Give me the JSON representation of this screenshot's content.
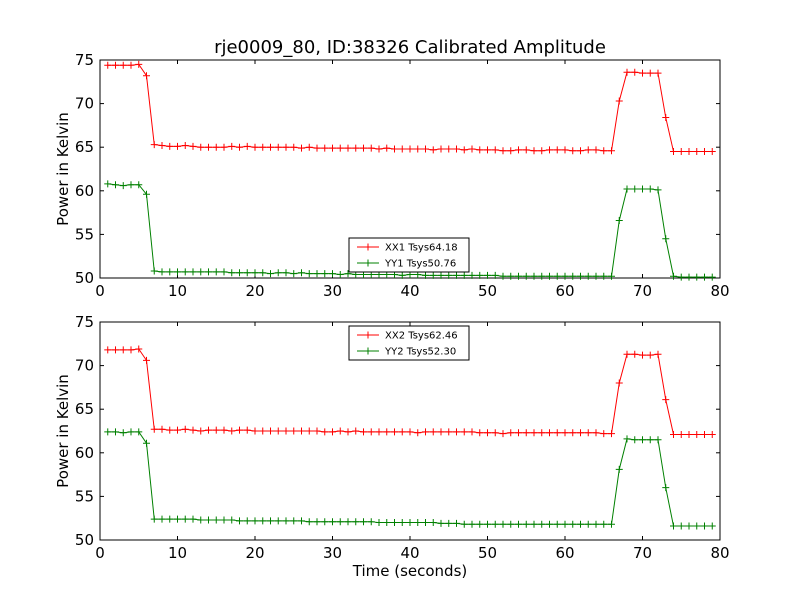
{
  "figure": {
    "title": "rje0009_80, ID:38326 Calibrated Amplitude"
  },
  "colors": {
    "series_red": "#ff0000",
    "series_green": "#008000",
    "axes": "#000000",
    "background": "#ffffff"
  },
  "chart_data": [
    {
      "type": "line",
      "title": "rje0009_80, ID:38326 Calibrated Amplitude",
      "xlabel": "",
      "ylabel": "Power in Kelvin",
      "xlim": [
        0,
        80
      ],
      "ylim": [
        50,
        75
      ],
      "xticks": [
        0,
        10,
        20,
        30,
        40,
        50,
        60,
        70,
        80
      ],
      "yticks": [
        50,
        55,
        60,
        65,
        70,
        75
      ],
      "grid": false,
      "legend_position": "lower-center",
      "marker": "plus",
      "x": [
        1,
        2,
        3,
        4,
        5,
        6,
        7,
        8,
        9,
        10,
        11,
        12,
        13,
        14,
        15,
        16,
        17,
        18,
        19,
        20,
        21,
        22,
        23,
        24,
        25,
        26,
        27,
        28,
        29,
        30,
        31,
        32,
        33,
        34,
        35,
        36,
        37,
        38,
        39,
        40,
        41,
        42,
        43,
        44,
        45,
        46,
        47,
        48,
        49,
        50,
        51,
        52,
        53,
        54,
        55,
        56,
        57,
        58,
        59,
        60,
        61,
        62,
        63,
        64,
        65,
        66,
        67,
        68,
        69,
        70,
        71,
        72,
        73,
        74,
        75,
        76,
        77,
        78,
        79
      ],
      "series": [
        {
          "name": "XX1 Tsys64.18",
          "color": "#ff0000",
          "values": [
            74.4,
            74.4,
            74.4,
            74.4,
            74.5,
            73.2,
            65.3,
            65.2,
            65.1,
            65.1,
            65.2,
            65.1,
            65.0,
            65.0,
            65.0,
            65.0,
            65.1,
            65.0,
            65.1,
            65.0,
            65.0,
            65.0,
            65.0,
            65.0,
            65.0,
            64.9,
            65.0,
            64.9,
            64.9,
            64.9,
            64.9,
            64.9,
            64.9,
            64.9,
            64.9,
            64.8,
            64.9,
            64.8,
            64.8,
            64.8,
            64.8,
            64.8,
            64.7,
            64.8,
            64.8,
            64.8,
            64.7,
            64.8,
            64.7,
            64.7,
            64.7,
            64.6,
            64.6,
            64.7,
            64.7,
            64.6,
            64.6,
            64.7,
            64.7,
            64.7,
            64.6,
            64.6,
            64.7,
            64.7,
            64.6,
            64.6,
            70.3,
            73.6,
            73.6,
            73.5,
            73.5,
            73.5,
            68.4,
            64.5,
            64.5,
            64.5,
            64.5,
            64.5,
            64.5
          ]
        },
        {
          "name": "YY1 Tsys50.76",
          "color": "#008000",
          "values": [
            60.8,
            60.7,
            60.6,
            60.7,
            60.7,
            59.6,
            50.8,
            50.7,
            50.7,
            50.7,
            50.7,
            50.7,
            50.7,
            50.7,
            50.7,
            50.7,
            50.6,
            50.6,
            50.6,
            50.6,
            50.6,
            50.5,
            50.6,
            50.6,
            50.5,
            50.6,
            50.5,
            50.5,
            50.5,
            50.5,
            50.4,
            50.5,
            50.4,
            50.4,
            50.4,
            50.4,
            50.4,
            50.4,
            50.3,
            50.4,
            50.4,
            50.3,
            50.3,
            50.3,
            50.3,
            50.3,
            50.3,
            50.3,
            50.3,
            50.3,
            50.3,
            50.2,
            50.2,
            50.2,
            50.2,
            50.2,
            50.2,
            50.2,
            50.2,
            50.2,
            50.2,
            50.2,
            50.2,
            50.2,
            50.2,
            50.2,
            56.6,
            60.2,
            60.2,
            60.2,
            60.2,
            60.1,
            54.5,
            50.2,
            50.1,
            50.1,
            50.1,
            50.1,
            50.1
          ]
        }
      ]
    },
    {
      "type": "line",
      "title": "",
      "xlabel": "Time (seconds)",
      "ylabel": "Power in Kelvin",
      "xlim": [
        0,
        80
      ],
      "ylim": [
        50,
        75
      ],
      "xticks": [
        0,
        10,
        20,
        30,
        40,
        50,
        60,
        70,
        80
      ],
      "yticks": [
        50,
        55,
        60,
        65,
        70,
        75
      ],
      "grid": false,
      "legend_position": "upper-center",
      "marker": "plus",
      "x": [
        1,
        2,
        3,
        4,
        5,
        6,
        7,
        8,
        9,
        10,
        11,
        12,
        13,
        14,
        15,
        16,
        17,
        18,
        19,
        20,
        21,
        22,
        23,
        24,
        25,
        26,
        27,
        28,
        29,
        30,
        31,
        32,
        33,
        34,
        35,
        36,
        37,
        38,
        39,
        40,
        41,
        42,
        43,
        44,
        45,
        46,
        47,
        48,
        49,
        50,
        51,
        52,
        53,
        54,
        55,
        56,
        57,
        58,
        59,
        60,
        61,
        62,
        63,
        64,
        65,
        66,
        67,
        68,
        69,
        70,
        71,
        72,
        73,
        74,
        75,
        76,
        77,
        78,
        79
      ],
      "series": [
        {
          "name": "XX2 Tsys62.46",
          "color": "#ff0000",
          "values": [
            71.8,
            71.8,
            71.8,
            71.8,
            71.9,
            70.6,
            62.7,
            62.7,
            62.6,
            62.6,
            62.7,
            62.6,
            62.5,
            62.6,
            62.6,
            62.6,
            62.5,
            62.6,
            62.6,
            62.5,
            62.5,
            62.5,
            62.5,
            62.5,
            62.5,
            62.5,
            62.5,
            62.5,
            62.4,
            62.4,
            62.5,
            62.4,
            62.5,
            62.4,
            62.4,
            62.4,
            62.4,
            62.4,
            62.4,
            62.4,
            62.3,
            62.4,
            62.4,
            62.4,
            62.4,
            62.4,
            62.4,
            62.4,
            62.3,
            62.3,
            62.3,
            62.2,
            62.3,
            62.3,
            62.3,
            62.3,
            62.3,
            62.3,
            62.3,
            62.3,
            62.3,
            62.3,
            62.3,
            62.3,
            62.2,
            62.2,
            68.0,
            71.3,
            71.3,
            71.2,
            71.2,
            71.3,
            66.1,
            62.1,
            62.1,
            62.1,
            62.1,
            62.1,
            62.1
          ]
        },
        {
          "name": "YY2 Tsys52.30",
          "color": "#008000",
          "values": [
            62.4,
            62.4,
            62.3,
            62.4,
            62.4,
            61.1,
            52.4,
            52.4,
            52.4,
            52.4,
            52.4,
            52.4,
            52.3,
            52.3,
            52.3,
            52.3,
            52.3,
            52.2,
            52.2,
            52.2,
            52.2,
            52.2,
            52.2,
            52.2,
            52.2,
            52.2,
            52.1,
            52.1,
            52.1,
            52.1,
            52.1,
            52.1,
            52.1,
            52.1,
            52.1,
            52.0,
            52.0,
            52.0,
            52.0,
            52.0,
            52.0,
            52.0,
            52.0,
            51.9,
            51.9,
            51.9,
            51.8,
            51.8,
            51.8,
            51.8,
            51.8,
            51.8,
            51.8,
            51.8,
            51.8,
            51.8,
            51.8,
            51.8,
            51.8,
            51.8,
            51.8,
            51.8,
            51.8,
            51.8,
            51.8,
            51.8,
            58.1,
            61.6,
            61.5,
            61.5,
            61.5,
            61.5,
            56.0,
            51.6,
            51.6,
            51.6,
            51.6,
            51.6,
            51.6
          ]
        }
      ]
    }
  ]
}
